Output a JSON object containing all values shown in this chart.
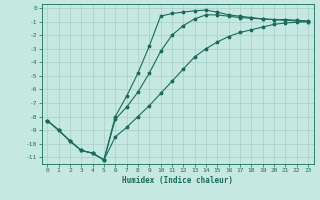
{
  "xlabel": "Humidex (Indice chaleur)",
  "bg_color": "#c5e8e0",
  "grid_color": "#a8d0c8",
  "line_color": "#1a6b5a",
  "xlim": [
    -0.5,
    23.5
  ],
  "ylim": [
    -11.5,
    0.3
  ],
  "yticks": [
    0,
    -1,
    -2,
    -3,
    -4,
    -5,
    -6,
    -7,
    -8,
    -9,
    -10,
    -11
  ],
  "xticks": [
    0,
    1,
    2,
    3,
    4,
    5,
    6,
    7,
    8,
    9,
    10,
    11,
    12,
    13,
    14,
    15,
    16,
    17,
    18,
    19,
    20,
    21,
    22,
    23
  ],
  "x": [
    0,
    1,
    2,
    3,
    4,
    5,
    6,
    7,
    8,
    9,
    10,
    11,
    12,
    13,
    14,
    15,
    16,
    17,
    18,
    19,
    20,
    21,
    22,
    23
  ],
  "y_fast": [
    -8.3,
    -9.0,
    -9.8,
    -10.5,
    -10.7,
    -11.2,
    -8.0,
    -6.5,
    -4.8,
    -2.8,
    -0.6,
    -0.4,
    -0.3,
    -0.2,
    -0.15,
    -0.3,
    -0.5,
    -0.6,
    -0.7,
    -0.8,
    -0.85,
    -0.85,
    -0.9,
    -0.95
  ],
  "y_mid": [
    -8.3,
    -9.0,
    -9.8,
    -10.5,
    -10.7,
    -11.2,
    -8.2,
    -7.3,
    -6.2,
    -4.8,
    -3.2,
    -2.0,
    -1.3,
    -0.8,
    -0.5,
    -0.5,
    -0.6,
    -0.7,
    -0.75,
    -0.8,
    -0.85,
    -0.9,
    -0.95,
    -1.0
  ],
  "y_slow": [
    -8.3,
    -9.0,
    -9.8,
    -10.5,
    -10.7,
    -11.2,
    -9.5,
    -8.8,
    -8.0,
    -7.2,
    -6.3,
    -5.4,
    -4.5,
    -3.6,
    -3.0,
    -2.5,
    -2.1,
    -1.8,
    -1.6,
    -1.4,
    -1.2,
    -1.1,
    -1.05,
    -1.0
  ]
}
